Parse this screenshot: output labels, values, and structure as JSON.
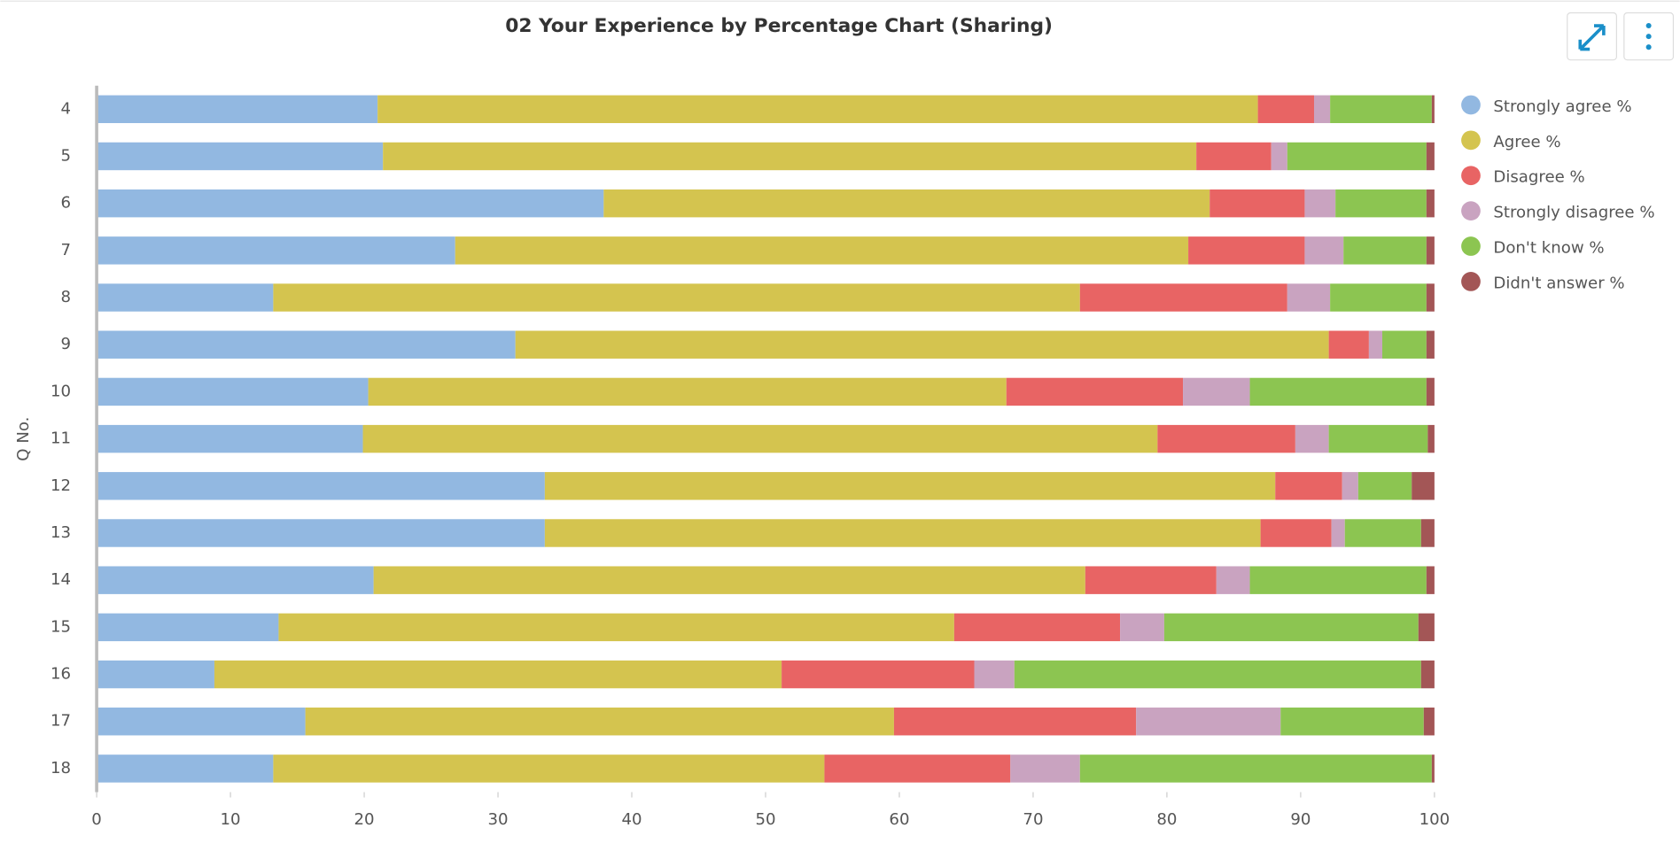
{
  "chart_data": {
    "type": "stacked_bar_horizontal",
    "title": "02 Your Experience by Percentage Chart (Sharing)",
    "y_label": "Q No.",
    "categories": [
      "4",
      "5",
      "6",
      "7",
      "8",
      "9",
      "10",
      "11",
      "12",
      "13",
      "14",
      "15",
      "16",
      "17",
      "18"
    ],
    "xlim": [
      0,
      100
    ],
    "xticks": [
      0,
      10,
      20,
      30,
      40,
      50,
      60,
      70,
      80,
      90,
      100
    ],
    "grid": false,
    "legend": "right",
    "series": [
      {
        "name": "Strongly agree %",
        "color": "#92b8e1",
        "values": [
          21.0,
          21.4,
          37.9,
          26.8,
          13.2,
          31.3,
          20.3,
          19.9,
          33.5,
          33.5,
          20.7,
          13.6,
          8.8,
          15.6,
          13.2
        ]
      },
      {
        "name": "Agree %",
        "color": "#d4c44f",
        "values": [
          65.8,
          60.8,
          45.3,
          54.8,
          60.3,
          60.8,
          47.7,
          59.4,
          54.6,
          53.5,
          53.2,
          50.5,
          42.4,
          44.0,
          41.2
        ]
      },
      {
        "name": "Disagree %",
        "color": "#e86464",
        "values": [
          4.2,
          5.6,
          7.1,
          8.7,
          15.5,
          3.0,
          13.2,
          10.3,
          5.0,
          5.3,
          9.8,
          12.4,
          14.4,
          18.1,
          13.9
        ]
      },
      {
        "name": "Strongly disagree %",
        "color": "#c9a3c0",
        "values": [
          1.2,
          1.2,
          2.3,
          2.9,
          3.2,
          1.0,
          5.0,
          2.5,
          1.2,
          1.0,
          2.5,
          3.3,
          3.0,
          10.8,
          5.2
        ]
      },
      {
        "name": "Don't know %",
        "color": "#8cc551",
        "values": [
          7.6,
          10.4,
          6.8,
          6.2,
          7.2,
          3.3,
          13.2,
          7.4,
          4.0,
          5.7,
          13.2,
          19.0,
          30.4,
          10.7,
          26.3
        ]
      },
      {
        "name": "Didn't answer %",
        "color": "#a35656",
        "values": [
          0.2,
          0.6,
          0.6,
          0.6,
          0.6,
          0.6,
          0.6,
          0.5,
          1.7,
          1.0,
          0.6,
          1.2,
          1.0,
          0.8,
          0.2
        ]
      }
    ]
  }
}
